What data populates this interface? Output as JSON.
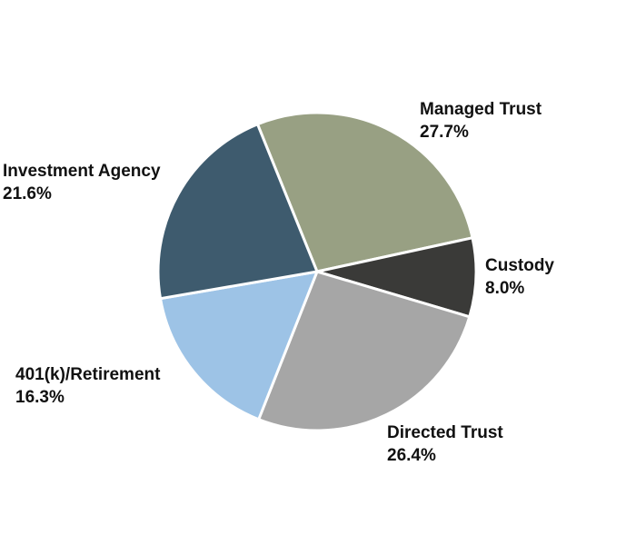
{
  "chart_data": {
    "type": "pie",
    "title": "",
    "legend": "none",
    "start_direction": "clockwise",
    "slices": [
      {
        "label": "Managed Trust",
        "value": 27.7,
        "value_label": "27.7%",
        "color": "#98a083"
      },
      {
        "label": "Custody",
        "value": 8.0,
        "value_label": "8.0%",
        "color": "#3a3a38"
      },
      {
        "label": "Directed Trust",
        "value": 26.4,
        "value_label": "26.4%",
        "color": "#a6a6a6"
      },
      {
        "label": "401(k)/Retirement",
        "value": 16.3,
        "value_label": "16.3%",
        "color": "#9dc3e6"
      },
      {
        "label": "Investment Agency",
        "value": 21.6,
        "value_label": "21.6%",
        "color": "#3e5b6e"
      }
    ]
  }
}
